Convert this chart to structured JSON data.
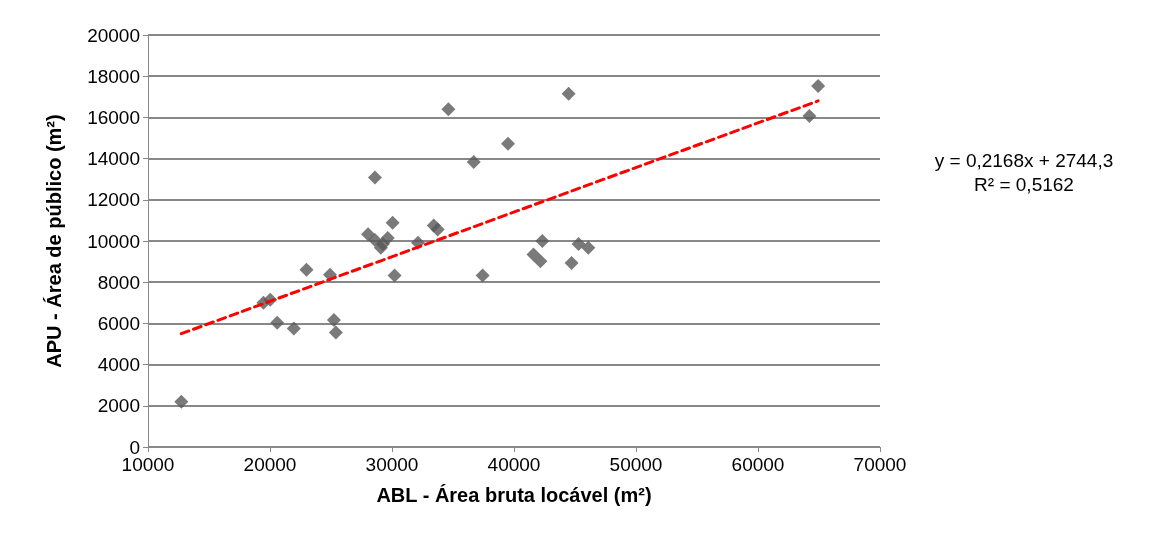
{
  "chart_data": {
    "type": "scatter",
    "xlabel": "ABL - Área bruta locável (m²)",
    "ylabel": "APU - Área de público (m²)",
    "xlim": [
      10000,
      70000
    ],
    "xticks": [
      10000,
      20000,
      30000,
      40000,
      50000,
      60000,
      70000
    ],
    "ylim": [
      0,
      20000
    ],
    "yticks": [
      0,
      2000,
      4000,
      6000,
      8000,
      10000,
      12000,
      14000,
      16000,
      18000,
      20000
    ],
    "grid": "y",
    "marker": "diamond",
    "annotations": [
      "y = 0,2168x + 2744,3\nR² = 0,5162"
    ],
    "series": [
      {
        "type": "scatter",
        "color": "#595959",
        "x": [
          12730,
          19460,
          20020,
          20590,
          21950,
          22990,
          24920,
          25240,
          25400,
          28040,
          28600,
          28600,
          29090,
          29250,
          29650,
          30050,
          30210,
          32130,
          33420,
          33740,
          34620,
          36700,
          37430,
          39510,
          41600,
          42160,
          42320,
          44480,
          44720,
          45290,
          46090,
          64210,
          64930
        ],
        "values": [
          2200,
          7000,
          7150,
          6030,
          5750,
          8600,
          8360,
          6170,
          5560,
          10330,
          13080,
          10050,
          9670,
          9860,
          10140,
          10890,
          8320,
          9910,
          10750,
          10560,
          16400,
          13830,
          8320,
          14720,
          9350,
          9020,
          10000,
          17150,
          8930,
          9860,
          9670,
          16070,
          17520
        ]
      },
      {
        "type": "line",
        "color": "#ff0000",
        "line_style": "dashed",
        "marker": "none",
        "x": [
          12730,
          64930
        ],
        "values": [
          5500,
          16800
        ]
      }
    ]
  }
}
